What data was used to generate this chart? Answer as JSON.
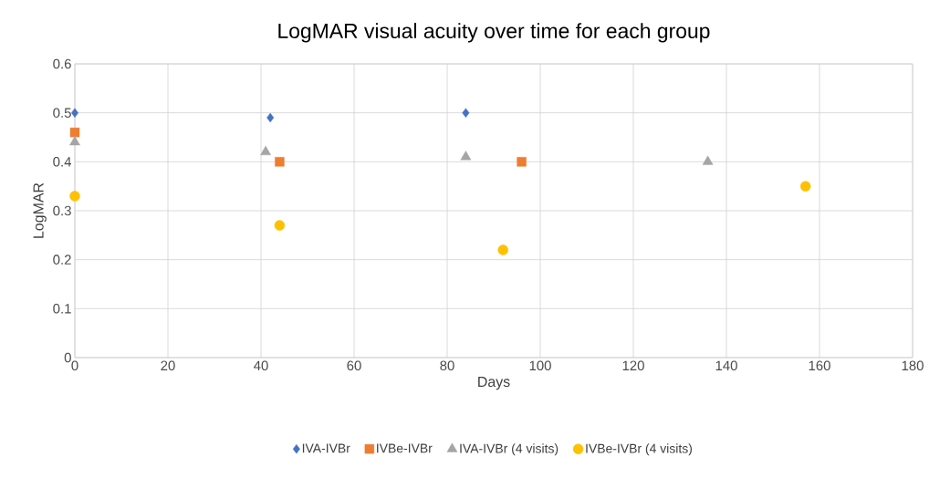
{
  "chart_data": {
    "type": "scatter",
    "title": "LogMAR visual acuity over time for each group",
    "xlabel": "Days",
    "ylabel": "LogMAR",
    "xlim": [
      0,
      180
    ],
    "xticks": [
      0,
      20,
      40,
      60,
      80,
      100,
      120,
      140,
      160,
      180
    ],
    "ylim": [
      0,
      0.6
    ],
    "yticks": [
      0,
      0.1,
      0.2,
      0.3,
      0.4,
      0.5,
      0.6
    ],
    "grid": true,
    "legend": "bottom",
    "series": [
      {
        "name": "IVA-IVBr",
        "color": "#4472c4",
        "marker": "diamond",
        "x": [
          0,
          42,
          84
        ],
        "values": [
          0.5,
          0.49,
          0.5
        ]
      },
      {
        "name": "IVBe-IVBr",
        "color": "#ed7d31",
        "marker": "square",
        "x": [
          0,
          44,
          96
        ],
        "values": [
          0.46,
          0.4,
          0.4
        ]
      },
      {
        "name": "IVA-IVBr (4 visits)",
        "color": "#a5a5a5",
        "marker": "triangle",
        "x": [
          0,
          41,
          84,
          136
        ],
        "values": [
          0.44,
          0.42,
          0.41,
          0.4
        ]
      },
      {
        "name": "IVBe-IVBr (4 visits)",
        "color": "#ffc000",
        "marker": "circle",
        "x": [
          0,
          44,
          92,
          157
        ],
        "values": [
          0.33,
          0.27,
          0.22,
          0.35
        ]
      }
    ]
  }
}
